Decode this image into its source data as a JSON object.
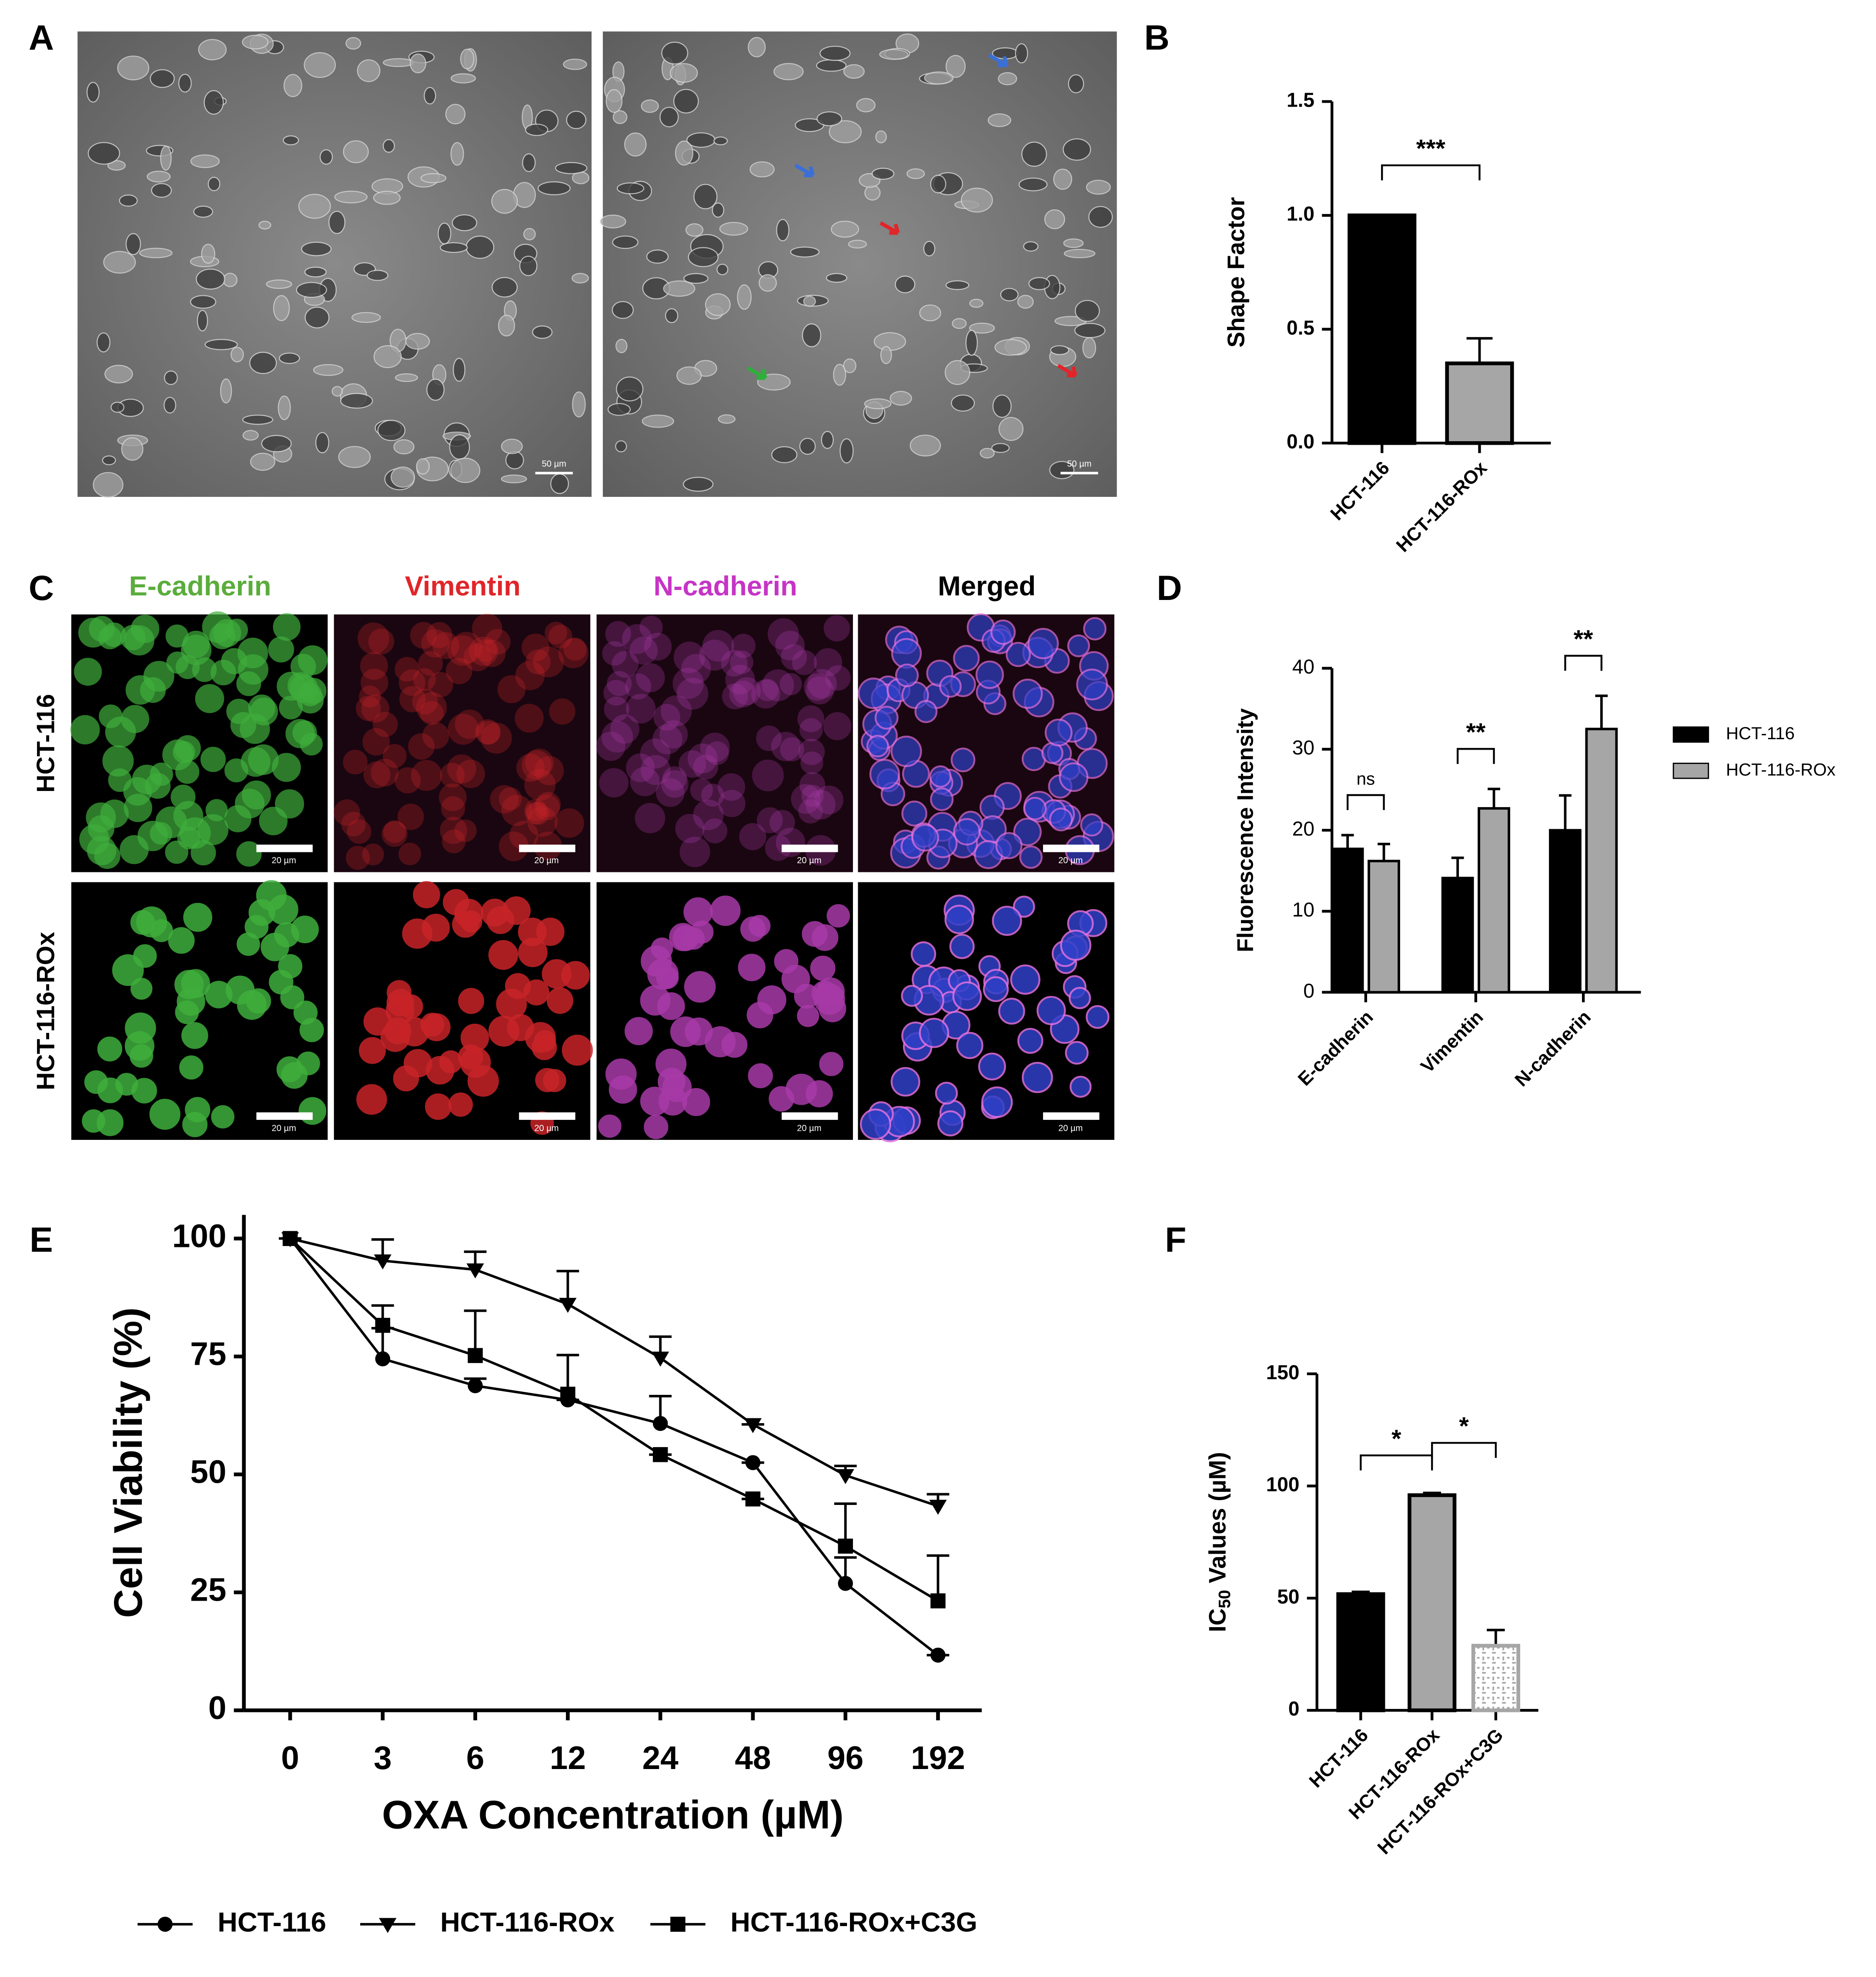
{
  "figure": {
    "panel_labels": [
      "A",
      "B",
      "C",
      "D",
      "E",
      "F"
    ],
    "phase_scale_bar": "50 µm",
    "fluorescence_scale_bar": "20 µm",
    "stains": [
      "E-cadherin",
      "Vimentin",
      "N-cadherin",
      "Merged"
    ],
    "stain_colors": [
      "#5aad3c",
      "#e0262a",
      "#c634c6",
      "#000000"
    ],
    "cell_lines": [
      "HCT-116",
      "HCT-116-ROx"
    ]
  },
  "chart_data": [
    {
      "type": "bar",
      "ylabel": "Shape Factor",
      "categories": [
        "HCT-116",
        "HCT-116-ROx"
      ],
      "values": [
        1.0,
        0.35
      ],
      "errors": [
        0,
        0.11
      ],
      "colors": [
        "#000000",
        "#a6a6a6"
      ],
      "edgecolors": [
        "#000000",
        "#000000"
      ],
      "hatch": [
        false,
        false
      ],
      "ylim": [
        0,
        1.5
      ],
      "yticks": [
        {
          "value": 0,
          "label": "0.0"
        },
        0.5,
        {
          "value": 1,
          "label": "1.0"
        },
        1.5
      ],
      "annotations": [
        {
          "label": "***",
          "from": 0,
          "to": 1
        }
      ]
    },
    {
      "type": "grouped_bar",
      "ylabel": "Fluorescence Intensity",
      "categories": [
        "E-cadherin",
        "Vimentin",
        "N-cadherin"
      ],
      "series": [
        {
          "name": "HCT-116",
          "color": "#000000",
          "values": [
            17.7,
            14.1,
            20.0
          ],
          "errors": [
            1.7,
            2.5,
            4.3
          ]
        },
        {
          "name": "HCT-116-ROx",
          "color": "#a6a6a6",
          "values": [
            16.2,
            22.7,
            32.5
          ],
          "errors": [
            2.1,
            2.4,
            4.1
          ]
        }
      ],
      "ylim": [
        0,
        40
      ],
      "yticks": [
        0,
        10,
        20,
        30,
        40
      ],
      "legend": "right",
      "annotations": [
        {
          "label": "ns",
          "category": 0
        },
        {
          "label": "**",
          "category": 1
        },
        {
          "label": "**",
          "category": 2
        }
      ]
    },
    {
      "type": "line",
      "xlabel": "OXA Concentration (µM)",
      "ylabel": "Cell Viability (%)",
      "categories": [
        "0",
        "3",
        "6",
        "12",
        "24",
        "48",
        "96",
        "192"
      ],
      "series": [
        {
          "name": "HCT-116",
          "color": "#000000",
          "marker": "circle",
          "values": [
            100,
            74.5,
            68.8,
            65.8,
            60.8,
            52.5,
            26.9,
            11.7
          ],
          "errors": [
            0,
            6.5,
            1.5,
            0,
            5.8,
            0,
            5.5,
            0
          ]
        },
        {
          "name": "HCT-116-ROx",
          "color": "#000000",
          "marker": "triangle-down",
          "values": [
            100,
            95.3,
            93.4,
            86.1,
            74.7,
            60.6,
            49.8,
            43.3
          ],
          "errors": [
            0,
            4.5,
            3.8,
            7.0,
            4.5,
            0,
            2.0,
            2.5
          ]
        },
        {
          "name": "HCT-116-ROx+C3G",
          "color": "#000000",
          "marker": "square",
          "values": [
            100,
            81.6,
            75.2,
            67.0,
            54.2,
            44.8,
            34.8,
            23.2
          ],
          "errors": [
            0,
            4.2,
            9.5,
            8.3,
            0,
            0,
            9.0,
            9.6
          ]
        }
      ],
      "ylim": [
        0,
        105
      ],
      "yticks": [
        0,
        25,
        50,
        75,
        100
      ],
      "legend": "bottom"
    },
    {
      "type": "bar",
      "ylabel": "IC",
      "ylabel_subscript": "50",
      "ylabel_rest": " Values (µM)",
      "categories": [
        "HCT-116",
        "HCT-116-ROx",
        "HCT-116-ROx+C3G"
      ],
      "values": [
        51.8,
        95.9,
        28.8
      ],
      "errors": [
        1.0,
        1.0,
        7.0
      ],
      "colors": [
        "#000000",
        "#a6a6a6",
        "#ffffff"
      ],
      "edgecolors": [
        "#000000",
        "#000000",
        "#a6a6a6"
      ],
      "hatch": [
        false,
        false,
        true
      ],
      "ylim": [
        0,
        150
      ],
      "yticks": [
        0,
        50,
        100,
        150
      ],
      "annotations": [
        {
          "label": "*",
          "from": 0,
          "to": 1
        },
        {
          "label": "*",
          "from": 1,
          "to": 2
        }
      ]
    }
  ]
}
